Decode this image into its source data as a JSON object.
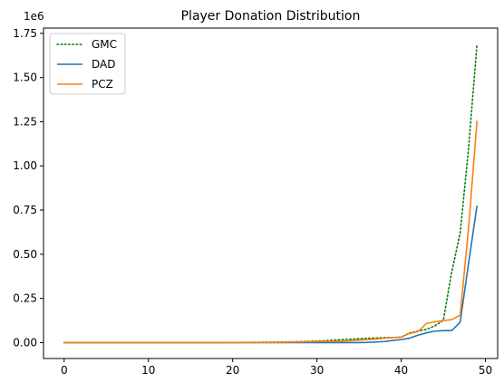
{
  "chart_data": {
    "type": "line",
    "title": "Player Donation Distribution",
    "xlabel": "",
    "ylabel": "",
    "y_offset_label": "1e6",
    "xlim": [
      -2.45,
      51.45
    ],
    "ylim": [
      -90000,
      1780000
    ],
    "x_ticks": [
      0,
      10,
      20,
      30,
      40,
      50
    ],
    "y_ticks": [
      0,
      250000,
      500000,
      750000,
      1000000,
      1250000,
      1500000,
      1750000
    ],
    "x_tick_labels": [
      "0",
      "10",
      "20",
      "30",
      "40",
      "50"
    ],
    "y_tick_labels": [
      "0.00",
      "0.25",
      "0.50",
      "0.75",
      "1.00",
      "1.25",
      "1.50",
      "1.75"
    ],
    "grid": false,
    "legend_position": "upper-left",
    "x": [
      0,
      1,
      2,
      3,
      4,
      5,
      6,
      7,
      8,
      9,
      10,
      11,
      12,
      13,
      14,
      15,
      16,
      17,
      18,
      19,
      20,
      21,
      22,
      23,
      24,
      25,
      26,
      27,
      28,
      29,
      30,
      31,
      32,
      33,
      34,
      35,
      36,
      37,
      38,
      39,
      40,
      41,
      42,
      43,
      44,
      45,
      46,
      47,
      48,
      49
    ],
    "series": [
      {
        "name": "GMC",
        "color": "#008000",
        "style": "dotted",
        "values": [
          0,
          0,
          0,
          0,
          0,
          0,
          0,
          0,
          0,
          0,
          0,
          0,
          0,
          0,
          0,
          0,
          0,
          0,
          0,
          0,
          500,
          1000,
          1500,
          2000,
          2500,
          3000,
          3500,
          4500,
          5500,
          7000,
          9000,
          11000,
          14000,
          17000,
          19000,
          22000,
          24000,
          26000,
          28000,
          29000,
          31000,
          55000,
          65000,
          75000,
          95000,
          125000,
          400000,
          620000,
          1100000,
          1690000
        ]
      },
      {
        "name": "DAD",
        "color": "#1f77b4",
        "style": "solid",
        "values": [
          0,
          0,
          0,
          0,
          0,
          0,
          0,
          0,
          0,
          0,
          0,
          0,
          0,
          0,
          0,
          0,
          0,
          0,
          0,
          0,
          0,
          0,
          0,
          0,
          0,
          0,
          0,
          0,
          0,
          0,
          0,
          0,
          0,
          0,
          0,
          0,
          1000,
          3000,
          6000,
          12000,
          17000,
          25000,
          42000,
          55000,
          65000,
          68000,
          68000,
          115000,
          450000,
          775000
        ]
      },
      {
        "name": "PCZ",
        "color": "#ff7f0e",
        "style": "solid",
        "values": [
          0,
          0,
          0,
          0,
          0,
          0,
          0,
          0,
          0,
          0,
          0,
          0,
          0,
          0,
          0,
          0,
          0,
          0,
          0,
          0,
          0,
          0,
          0,
          500,
          1000,
          1500,
          2000,
          3000,
          4000,
          5000,
          6000,
          7000,
          8000,
          9000,
          11000,
          14000,
          17000,
          20000,
          25000,
          28000,
          30000,
          52000,
          62000,
          108000,
          118000,
          125000,
          130000,
          155000,
          650000,
          1255000
        ]
      }
    ]
  }
}
